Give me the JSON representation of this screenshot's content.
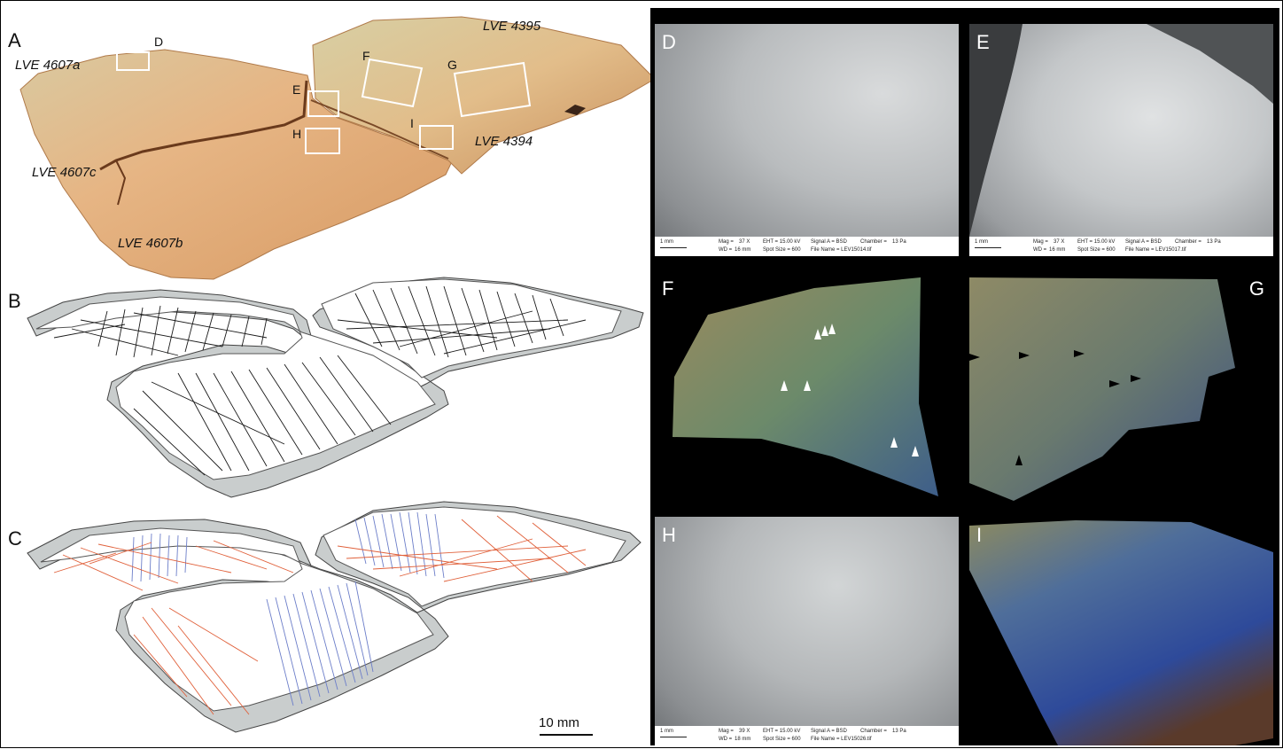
{
  "panels": {
    "A": "A",
    "B": "B",
    "C": "C"
  },
  "specimens": {
    "lve4607a": "LVE 4607a",
    "lve4607b": "LVE 4607b",
    "lve4607c": "LVE 4607c",
    "lve4395": "LVE 4395",
    "lve4394": "LVE 4394"
  },
  "boxes": {
    "D": "D",
    "E": "E",
    "F": "F",
    "G": "G",
    "H": "H",
    "I": "I"
  },
  "scale_label": "10 mm",
  "colors": {
    "stone": "#e2b27f",
    "engraving_dark": "#1a1a1a",
    "series_red": "#e0603a",
    "series_blue": "#6c7ec9",
    "fracture_grey": "#c9cdcd"
  },
  "subpanels": {
    "D": {
      "letter": "D",
      "sem": {
        "scale": "1 mm",
        "mag": "Mag =",
        "mag_val": "37 X",
        "eht": "EHT = 15.00 kV",
        "signal": "Signal A = BSD",
        "chamber": "Chamber =",
        "chamber_val": "13 Pa",
        "wd": "WD =",
        "wd_val": "16 mm",
        "spot": "Spot Size = 600",
        "file": "File Name = LEV15014.tif"
      }
    },
    "E": {
      "letter": "E",
      "sem": {
        "scale": "1 mm",
        "mag": "Mag =",
        "mag_val": "37 X",
        "eht": "EHT = 15.00 kV",
        "signal": "Signal A = BSD",
        "chamber": "Chamber =",
        "chamber_val": "13 Pa",
        "wd": "WD =",
        "wd_val": "16 mm",
        "spot": "Spot Size = 600",
        "file": "File Name = LEV15017.tif"
      }
    },
    "F": {
      "letter": "F"
    },
    "G": {
      "letter": "G"
    },
    "H": {
      "letter": "H",
      "sem": {
        "scale": "1 mm",
        "mag": "Mag =",
        "mag_val": "39 X",
        "eht": "EHT = 15.00 kV",
        "signal": "Signal A = BSD",
        "chamber": "Chamber =",
        "chamber_val": "13 Pa",
        "wd": "WD =",
        "wd_val": "18 mm",
        "spot": "Spot Size = 600",
        "file": "File Name = LEV15026.tif"
      }
    },
    "I": {
      "letter": "I"
    }
  }
}
